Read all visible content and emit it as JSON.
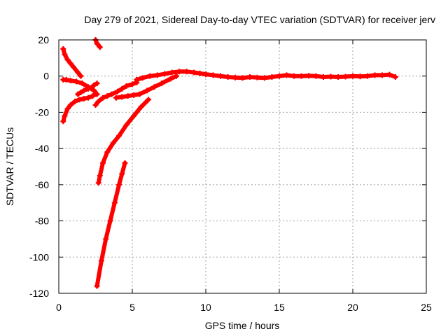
{
  "chart_data": {
    "type": "line",
    "title": "Day 279 of 2021, Sidereal Day-to-day VTEC variation (SDTVAR) for receiver jerv",
    "xlabel": "GPS time / hours",
    "ylabel": "SDTVAR / TECUs",
    "xlim": [
      0,
      25
    ],
    "ylim": [
      -120,
      20
    ],
    "xticks": [
      0,
      5,
      10,
      15,
      20,
      25
    ],
    "yticks": [
      -120,
      -100,
      -80,
      -60,
      -40,
      -20,
      0,
      20
    ],
    "grid": true,
    "legend": "none",
    "marker_color": "#ff0000",
    "series": [
      {
        "x": [
          0.3,
          0.4,
          0.6,
          0.8,
          1.0,
          1.3,
          1.5
        ],
        "y": [
          15,
          12,
          9,
          7,
          5,
          2,
          0
        ]
      },
      {
        "x": [
          0.3,
          0.5,
          0.8,
          1.2,
          1.6,
          2.0,
          2.4,
          2.6
        ],
        "y": [
          -2,
          -2,
          -2.5,
          -3,
          -4,
          -6,
          -8,
          -10
        ]
      },
      {
        "x": [
          0.3,
          0.4,
          0.6,
          0.8,
          1.1,
          1.4,
          1.7,
          2.0,
          2.3,
          2.5
        ],
        "y": [
          -25,
          -22,
          -18,
          -16,
          -14,
          -13,
          -12.5,
          -12,
          -11,
          -10
        ]
      },
      {
        "x": [
          1.3,
          1.5,
          1.7,
          2.0,
          2.2,
          2.4,
          2.6
        ],
        "y": [
          -10,
          -9,
          -8,
          -7,
          -6.5,
          -5,
          -4
        ]
      },
      {
        "x": [
          2.5,
          2.6,
          2.8
        ],
        "y": [
          20,
          18,
          16
        ]
      },
      {
        "x": [
          2.5,
          2.7,
          3.0,
          3.3,
          3.6,
          4.0,
          4.3,
          4.6,
          5.0,
          5.3
        ],
        "y": [
          -16,
          -14,
          -12,
          -11,
          -10,
          -8.5,
          -7,
          -5.5,
          -4.5,
          -3.5
        ]
      },
      {
        "x": [
          3.9,
          4.3,
          4.7,
          5.1,
          5.5,
          6.0,
          6.5,
          7.0,
          7.6,
          8.0
        ],
        "y": [
          -12,
          -11.5,
          -11,
          -10.5,
          -10,
          -8,
          -6,
          -4,
          -1.5,
          0
        ]
      },
      {
        "x": [
          5.3,
          5.7,
          6.2,
          6.7,
          7.2,
          7.7,
          8.2,
          8.7,
          9.2,
          9.6,
          10.0
        ],
        "y": [
          -2,
          -1,
          0,
          0.5,
          1.2,
          2,
          2.5,
          2.5,
          2,
          1.5,
          1
        ]
      },
      {
        "x": [
          10.0,
          10.5,
          11.0,
          11.5,
          12.0,
          12.5,
          13.0,
          13.5,
          14.0,
          14.5,
          15.0,
          15.5,
          16.0,
          16.5,
          17.0,
          17.5,
          18.0,
          18.5,
          19.0,
          19.5,
          20.0,
          20.5,
          21.0,
          21.5,
          22.0,
          22.5,
          22.9
        ],
        "y": [
          1,
          0.5,
          0,
          -0.5,
          -0.8,
          -1,
          -0.5,
          -0.8,
          -1,
          -0.5,
          0,
          0.5,
          0,
          0,
          0.2,
          0,
          -0.5,
          -0.3,
          -0.5,
          -0.3,
          0,
          -0.2,
          0,
          0.5,
          0.5,
          0.8,
          -0.5
        ]
      },
      {
        "x": [
          2.7,
          2.8,
          3.0,
          3.3,
          3.7,
          4.1,
          4.6,
          5.1,
          5.6,
          6.1
        ],
        "y": [
          -59,
          -55,
          -48,
          -42,
          -37,
          -33,
          -27,
          -22,
          -17,
          -13
        ]
      },
      {
        "x": [
          2.6,
          2.9,
          3.2,
          3.5,
          3.8,
          4.1,
          4.3,
          4.5
        ],
        "y": [
          -116,
          -102,
          -90,
          -80,
          -70,
          -60,
          -54,
          -48
        ]
      }
    ]
  }
}
